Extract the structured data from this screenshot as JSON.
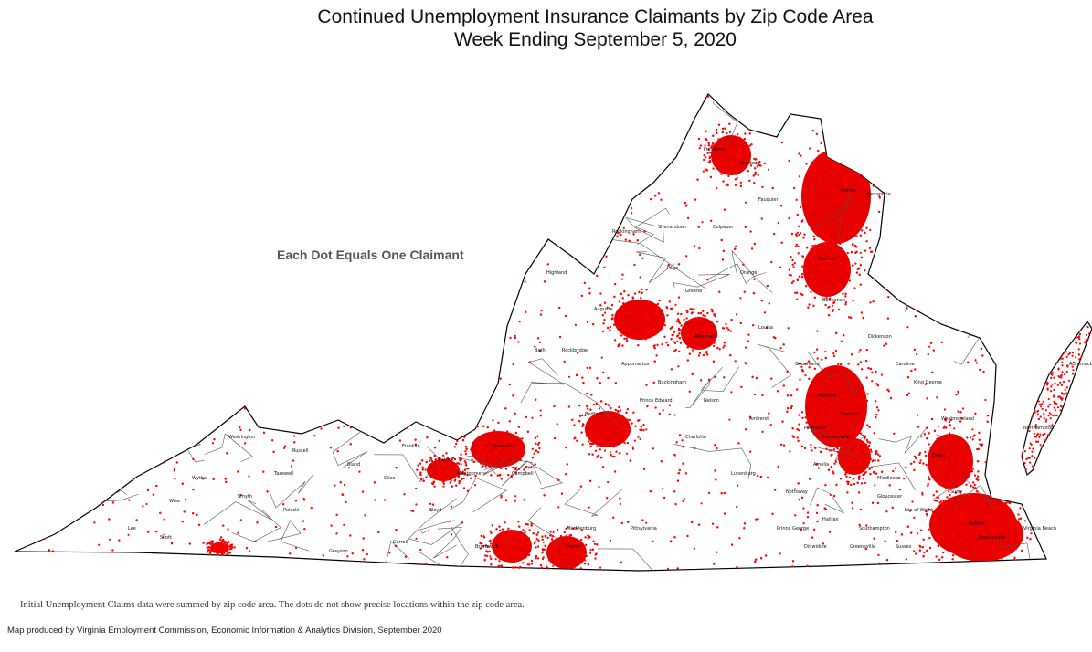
{
  "title": {
    "line1": "Continued Unemployment Insurance Claimants by Zip Code Area",
    "line2": "Week Ending September 5, 2020"
  },
  "legend_note": "Each Dot Equals One Claimant",
  "footnotes": {
    "data_note": "Initial Unemployment Claims data were summed by zip code area. The dots do not show precise locations within the zip code area.",
    "credit": "Map produced by Virginia Employment Commission, Economic Information & Analytics Division,  September 2020"
  },
  "colors": {
    "dot": "#ff0000",
    "dense_fill": "#e60000",
    "boundary": "#000000",
    "background": "#ffffff"
  },
  "map": {
    "region": "Virginia",
    "place_labels": [
      "Highland",
      "Rockingham",
      "Augusta",
      "Bath",
      "Rockbridge",
      "Albemarle",
      "Fairfax",
      "Alexandria",
      "Stafford",
      "Bedford",
      "Roanoke",
      "Campbell",
      "Pittsylvania",
      "Henry",
      "Halifax",
      "Mecklenburg",
      "Brunswick",
      "Southampton",
      "Chesterfield",
      "Henrico",
      "Hanover",
      "Suffolk",
      "Chesapeake",
      "Virginia Beach",
      "Northampton",
      "Accomack",
      "Scott",
      "Lee",
      "Wise",
      "Tazewell",
      "Smyth",
      "Grayson",
      "Carroll",
      "Floyd",
      "Giles",
      "Bland",
      "Culpeper",
      "Fauquier",
      "Loudoun",
      "Frederick",
      "Shenandoah",
      "Page",
      "Greene",
      "Orange",
      "Louisa",
      "Goochland",
      "Powhatan",
      "Amelia",
      "Nottoway",
      "Lunenburg",
      "Charlotte",
      "Prince Edward",
      "Buckingham",
      "Appomattox",
      "Nelson",
      "Amherst",
      "Franklin",
      "Patrick",
      "Montgomery",
      "Pulaski",
      "Wythe",
      "Washington",
      "Russell",
      "Buchanan",
      "Dickenson",
      "Caroline",
      "King George",
      "Westmoreland",
      "Essex",
      "Middlesex",
      "Gloucester",
      "Isle of Wight",
      "Surry",
      "Sussex",
      "Greensville",
      "Dinwiddie",
      "Prince George"
    ]
  }
}
